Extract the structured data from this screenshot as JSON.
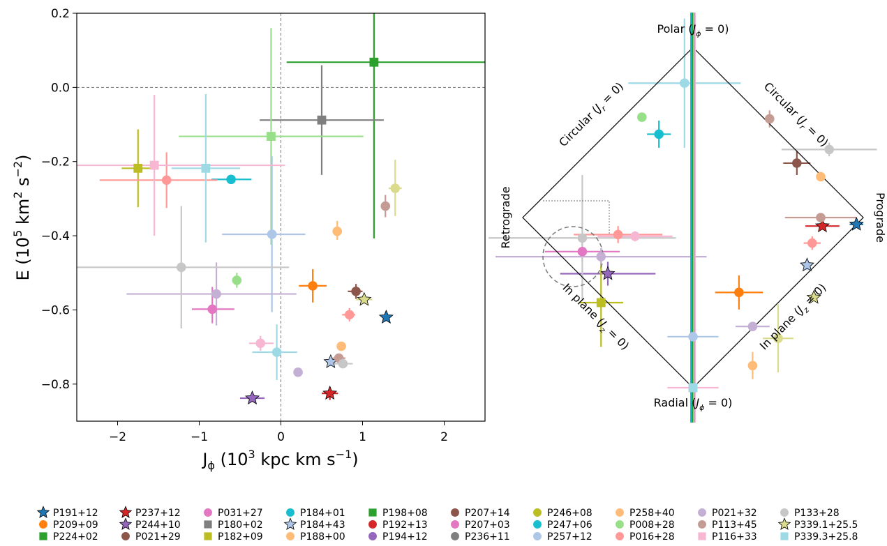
{
  "chart_data": [
    {
      "type": "scatter",
      "panel": "left",
      "xlabel": "J$_{\\phi}$ (10$^3$ kpc km s$^{-1}$)",
      "xlabel_main": "J",
      "xlabel_sub": "ϕ",
      "xlabel_rest": " (10",
      "xlabel_sup1": "3",
      "xlabel_rest2": " kpc km s",
      "xlabel_sup2": "−1",
      "xlabel_end": ")",
      "ylabel_main": "E (10",
      "ylabel_sup1": "5",
      "ylabel_rest": " km",
      "ylabel_sup2": "2",
      "ylabel_rest2": " s",
      "ylabel_sup3": "−2",
      "ylabel_end": ")",
      "xlim": [
        -2.5,
        2.5
      ],
      "ylim": [
        -0.9,
        0.2
      ],
      "xticks": [
        -2,
        -1,
        0,
        1,
        2
      ],
      "xtick_labels": [
        "−2",
        "−1",
        "0",
        "1",
        "2"
      ],
      "yticks": [
        0.2,
        0.0,
        -0.2,
        -0.4,
        -0.6,
        -0.8
      ],
      "ytick_labels": [
        "0.2",
        "0.0",
        "−0.2",
        "−0.4",
        "−0.6",
        "−0.8"
      ],
      "reference_lines": {
        "x": 0,
        "y": 0,
        "style": "dashed"
      },
      "points": [
        {
          "name": "P191+12",
          "x": 1.29,
          "y": -0.62,
          "marker": "star",
          "color": "#1f77b4"
        },
        {
          "name": "P209+09",
          "x": 0.39,
          "y": -0.535,
          "marker": "circle",
          "color": "#ff7f0e",
          "xerr": [
            0.17,
            0.17
          ],
          "yerr": [
            0.045,
            0.045
          ]
        },
        {
          "name": "P224+02",
          "x": 1.14,
          "y": 0.068,
          "marker": "square",
          "color": "#2ca02c",
          "xerr": [
            1.07,
            1.36
          ],
          "yerr": [
            0.475,
            0.505
          ]
        },
        {
          "name": "P237+12",
          "x": 0.6,
          "y": -0.825,
          "marker": "star",
          "color": "#d62728",
          "xerr": [
            0.1,
            0.1
          ],
          "yerr": [
            0.018,
            0.018
          ]
        },
        {
          "name": "P244+10",
          "x": -0.35,
          "y": -0.838,
          "marker": "star",
          "color": "#9467bd",
          "xerr": [
            0.15,
            0.15
          ]
        },
        {
          "name": "P021+29",
          "x": 0.92,
          "y": -0.55,
          "marker": "circle",
          "color": "#8c564b",
          "xerr": [
            0.1,
            0.08
          ],
          "yerr": [
            0.02,
            0.02
          ]
        },
        {
          "name": "P031+27",
          "x": -0.84,
          "y": -0.598,
          "marker": "circle",
          "color": "#e377c2",
          "xerr": [
            0.25,
            0.27
          ],
          "yerr": [
            0.038,
            0.06
          ]
        },
        {
          "name": "P180+02",
          "x": 0.5,
          "y": -0.088,
          "marker": "square",
          "color": "#7f7f7f",
          "xerr": [
            0.76,
            0.76
          ],
          "yerr": [
            0.148,
            0.148
          ]
        },
        {
          "name": "P182+09",
          "x": -1.75,
          "y": -0.218,
          "marker": "square",
          "color": "#bcbd22",
          "xerr": [
            0.2,
            0.2
          ],
          "yerr": [
            0.105,
            0.105
          ]
        },
        {
          "name": "P184+01",
          "x": -0.61,
          "y": -0.248,
          "marker": "circle",
          "color": "#17becf",
          "xerr": [
            0.24,
            0.25
          ],
          "yerr": [
            0.01,
            0.01
          ]
        },
        {
          "name": "P184+43",
          "x": 0.61,
          "y": -0.74,
          "marker": "star",
          "color": "#aec7e8",
          "xerr": [
            0.06,
            0.06
          ],
          "yerr": [
            0.012,
            0.012
          ]
        },
        {
          "name": "P188+00",
          "x": 0.69,
          "y": -0.388,
          "marker": "circle",
          "color": "#ffbb78",
          "xerr": [
            0.04,
            0.04
          ],
          "yerr": [
            0.023,
            0.028
          ]
        },
        {
          "name": "P198+08",
          "x": -0.12,
          "y": -0.132,
          "marker": "square",
          "color": "#98df8a",
          "xerr": [
            1.13,
            1.13
          ],
          "yerr": [
            0.292,
            0.292
          ]
        },
        {
          "name": "P192+13",
          "x": 0.84,
          "y": -0.613,
          "marker": "circle",
          "color": "#ff9896",
          "xerr": [
            0.09,
            0.07
          ],
          "yerr": [
            0.018,
            0.018
          ]
        },
        {
          "name": "P194+12",
          "x": 0.21,
          "y": -0.768,
          "marker": "circle",
          "color": "#c5b0d5"
        },
        {
          "name": "P207+14",
          "x": 0.71,
          "y": -0.73,
          "marker": "circle",
          "color": "#c49c94",
          "xerr": [
            0.08,
            0.08
          ]
        },
        {
          "name": "P207+03",
          "x": -0.25,
          "y": -0.69,
          "marker": "circle",
          "color": "#f7b6d2",
          "xerr": [
            0.14,
            0.16
          ],
          "yerr": [
            0.02,
            0.02
          ]
        },
        {
          "name": "P236+11",
          "x": 0.76,
          "y": -0.745,
          "marker": "circle",
          "color": "#c7c7c7",
          "xerr": [
            0.12,
            0.12
          ]
        },
        {
          "name": "P246+08",
          "x": 1.4,
          "y": -0.272,
          "marker": "circle",
          "color": "#dbdb8d",
          "xerr": [
            0.08,
            0.08
          ],
          "yerr": [
            0.075,
            0.077
          ]
        },
        {
          "name": "P247+06",
          "x": -0.05,
          "y": -0.714,
          "marker": "circle",
          "color": "#9edae5",
          "xerr": [
            0.3,
            0.25
          ],
          "yerr": [
            0.075,
            0.075
          ]
        },
        {
          "name": "P257+12",
          "x": -0.11,
          "y": -0.396,
          "marker": "circle",
          "color": "#aec7e8",
          "xerr": [
            0.61,
            0.41
          ],
          "yerr": [
            0.21,
            0.21
          ]
        },
        {
          "name": "P258+40",
          "x": 0.74,
          "y": -0.698,
          "marker": "circle",
          "color": "#ffbb78"
        },
        {
          "name": "P008+28",
          "x": -0.54,
          "y": -0.52,
          "marker": "circle",
          "color": "#98df8a",
          "xerr": [
            0.03,
            0.03
          ],
          "yerr": [
            0.02,
            0.02
          ]
        },
        {
          "name": "P016+28",
          "x": -1.4,
          "y": -0.25,
          "marker": "circle",
          "color": "#ff9896",
          "xerr": [
            0.82,
            0.62
          ],
          "yerr": [
            0.075,
            0.075
          ]
        },
        {
          "name": "P021+32",
          "x": -0.79,
          "y": -0.557,
          "marker": "circle",
          "color": "#c5b0d5",
          "xerr": [
            1.1,
            0.98
          ],
          "yerr": [
            0.085,
            0.085
          ]
        },
        {
          "name": "P113+45",
          "x": 1.28,
          "y": -0.32,
          "marker": "circle",
          "color": "#c49c94",
          "xerr": [
            0.04,
            0.04
          ],
          "yerr": [
            0.03,
            0.03
          ]
        },
        {
          "name": "P116+33",
          "x": -1.55,
          "y": -0.21,
          "marker": "square",
          "color": "#f7b6d2",
          "xerr": [
            0.95,
            1.6
          ],
          "yerr": [
            0.19,
            0.19
          ]
        },
        {
          "name": "P133+28",
          "x": -1.22,
          "y": -0.485,
          "marker": "circle",
          "color": "#c7c7c7",
          "xerr": [
            1.28,
            1.32
          ],
          "yerr": [
            0.165,
            0.165
          ]
        },
        {
          "name": "P339.1+25.5",
          "x": 1.02,
          "y": -0.572,
          "marker": "star",
          "color": "#dbdb8d",
          "xerr": [
            0.1,
            0.1
          ]
        },
        {
          "name": "P339.3+25.8",
          "x": -0.92,
          "y": -0.218,
          "marker": "square",
          "color": "#9edae5",
          "xerr": [
            0.42,
            0.42
          ],
          "yerr": [
            0.2,
            0.2
          ]
        }
      ]
    },
    {
      "type": "scatter",
      "panel": "right",
      "description_labels": {
        "top": "Polar (J$_\\phi$ = 0)",
        "bottom": "Radial (J$_\\phi$ = 0)",
        "left": "Retrograde",
        "right": "Prograde",
        "upper_left": "Circular (J$_r$ = 0)",
        "upper_right": "Circular (J$_r$ = 0)",
        "lower_left": "In plane (J$_z$ = 0)",
        "lower_right": "In plane (J$_z$ = 0)"
      },
      "top_label": {
        "pre": "Polar (",
        "J": "J",
        "sub": "ϕ",
        "post": " = 0)"
      },
      "bottom_label": {
        "pre": "Radial (",
        "J": "J",
        "sub": "ϕ",
        "post": " = 0)"
      },
      "left_label": "Retrograde",
      "right_label": "Prograde",
      "ul_label": {
        "pre": "Circular (",
        "J": "J",
        "sub": "r",
        "post": " = 0)"
      },
      "ur_label": {
        "pre": "Circular (",
        "J": "J",
        "sub": "r",
        "post": " = 0)"
      },
      "ll_label": {
        "pre": "In plane (",
        "J": "J",
        "sub": "z",
        "post": " = 0)"
      },
      "lr_label": {
        "pre": "In plane (",
        "J": "J",
        "sub": "z",
        "post": " = 0)"
      },
      "axes_shown": false,
      "points_diamond_frac": [
        {
          "name": "P191+12",
          "u": 0.96,
          "v": -0.04,
          "marker": "star",
          "color": "#1f77b4"
        },
        {
          "name": "P209+09",
          "u": 0.27,
          "v": -0.44,
          "marker": "circle",
          "color": "#ff7f0e"
        },
        {
          "name": "P224+02",
          "u": 0.0,
          "v": 0.0,
          "marker": "line",
          "color": "#2ca02c"
        },
        {
          "name": "P237+12",
          "u": 0.76,
          "v": -0.05,
          "marker": "star",
          "color": "#d62728"
        },
        {
          "name": "P244+10",
          "u": -0.5,
          "v": -0.33,
          "marker": "star",
          "color": "#9467bd"
        },
        {
          "name": "P021+29",
          "u": 0.61,
          "v": 0.32,
          "marker": "circle",
          "color": "#8c564b"
        },
        {
          "name": "P031+27",
          "u": -0.65,
          "v": -0.2,
          "marker": "circle",
          "color": "#e377c2"
        },
        {
          "name": "P180+02",
          "u": 0.0,
          "v": 0.0,
          "marker": "line",
          "color": "#7f7f7f"
        },
        {
          "name": "P182+09",
          "u": -0.54,
          "v": -0.5,
          "marker": "square",
          "color": "#bcbd22"
        },
        {
          "name": "P184+01",
          "u": -0.2,
          "v": 0.49,
          "marker": "circle",
          "color": "#17becf"
        },
        {
          "name": "P184+43",
          "u": 0.67,
          "v": -0.28,
          "marker": "star",
          "color": "#aec7e8"
        },
        {
          "name": "P188+00",
          "u": 0.75,
          "v": 0.24,
          "marker": "circle",
          "color": "#ffbb78"
        },
        {
          "name": "P198+08",
          "u": 0.0,
          "v": 0.0,
          "marker": "line",
          "color": "#98df8a"
        },
        {
          "name": "P192+13",
          "u": 0.7,
          "v": -0.15,
          "marker": "circle",
          "color": "#ff9896"
        },
        {
          "name": "P194+12",
          "u": 0.35,
          "v": -0.64,
          "marker": "circle",
          "color": "#c5b0d5"
        },
        {
          "name": "P207+14",
          "u": 0.75,
          "v": 0.0,
          "marker": "circle",
          "color": "#c49c94"
        },
        {
          "name": "P207+03",
          "u": -0.34,
          "v": -0.11,
          "marker": "circle",
          "color": "#f7b6d2"
        },
        {
          "name": "P236+11",
          "u": 0.8,
          "v": 0.4,
          "marker": "circle",
          "color": "#c7c7c7"
        },
        {
          "name": "P246+08",
          "u": 0.5,
          "v": -0.71,
          "marker": "circle",
          "color": "#dbdb8d"
        },
        {
          "name": "P247+06",
          "u": -0.05,
          "v": 0.79,
          "marker": "circle",
          "color": "#9edae5"
        },
        {
          "name": "P257+12",
          "u": 0.0,
          "v": -0.7,
          "marker": "circle",
          "color": "#aec7e8"
        },
        {
          "name": "P258+40",
          "u": 0.35,
          "v": -0.87,
          "marker": "circle",
          "color": "#ffbb78"
        },
        {
          "name": "P008+28",
          "u": -0.3,
          "v": 0.59,
          "marker": "circle",
          "color": "#98df8a"
        },
        {
          "name": "P016+28",
          "u": -0.44,
          "v": -0.1,
          "marker": "circle",
          "color": "#ff9896"
        },
        {
          "name": "P021+32",
          "u": -0.54,
          "v": -0.23,
          "marker": "circle",
          "color": "#c5b0d5"
        },
        {
          "name": "P113+45",
          "u": 0.45,
          "v": 0.58,
          "marker": "circle",
          "color": "#c49c94"
        },
        {
          "name": "P116+33",
          "u": 0.0,
          "v": -1.0,
          "marker": "square",
          "color": "#f7b6d2"
        },
        {
          "name": "P133+28",
          "u": -0.65,
          "v": -0.12,
          "marker": "circle",
          "color": "#c7c7c7"
        },
        {
          "name": "P339.1+25.5",
          "u": 0.71,
          "v": -0.47,
          "marker": "star",
          "color": "#dbdb8d"
        },
        {
          "name": "P339.3+25.8",
          "u": 0.0,
          "v": -1.0,
          "marker": "square",
          "color": "#9edae5"
        }
      ]
    }
  ],
  "legend": {
    "placement": "bottom",
    "columns": 10,
    "entries": [
      {
        "label": "P191+12",
        "marker": "star",
        "color": "#1f77b4"
      },
      {
        "label": "P209+09",
        "marker": "circle",
        "color": "#ff7f0e"
      },
      {
        "label": "P224+02",
        "marker": "square",
        "color": "#2ca02c"
      },
      {
        "label": "P237+12",
        "marker": "star",
        "color": "#d62728"
      },
      {
        "label": "P244+10",
        "marker": "star",
        "color": "#9467bd"
      },
      {
        "label": "P021+29",
        "marker": "circle",
        "color": "#8c564b"
      },
      {
        "label": "P031+27",
        "marker": "circle",
        "color": "#e377c2"
      },
      {
        "label": "P180+02",
        "marker": "square",
        "color": "#7f7f7f"
      },
      {
        "label": "P182+09",
        "marker": "square",
        "color": "#bcbd22"
      },
      {
        "label": "P184+01",
        "marker": "circle",
        "color": "#17becf"
      },
      {
        "label": "P184+43",
        "marker": "star",
        "color": "#aec7e8"
      },
      {
        "label": "P188+00",
        "marker": "circle",
        "color": "#ffbb78"
      },
      {
        "label": "P198+08",
        "marker": "square",
        "color": "#2ca02c"
      },
      {
        "label": "P192+13",
        "marker": "circle",
        "color": "#d62728"
      },
      {
        "label": "P194+12",
        "marker": "circle",
        "color": "#9467bd"
      },
      {
        "label": "P207+14",
        "marker": "circle",
        "color": "#8c564b"
      },
      {
        "label": "P207+03",
        "marker": "circle",
        "color": "#e377c2"
      },
      {
        "label": "P236+11",
        "marker": "circle",
        "color": "#7f7f7f"
      },
      {
        "label": "P246+08",
        "marker": "circle",
        "color": "#bcbd22"
      },
      {
        "label": "P247+06",
        "marker": "circle",
        "color": "#17becf"
      },
      {
        "label": "P257+12",
        "marker": "circle",
        "color": "#aec7e8"
      },
      {
        "label": "P258+40",
        "marker": "circle",
        "color": "#ffbb78"
      },
      {
        "label": "P008+28",
        "marker": "circle",
        "color": "#98df8a"
      },
      {
        "label": "P016+28",
        "marker": "circle",
        "color": "#ff9896"
      },
      {
        "label": "P021+32",
        "marker": "circle",
        "color": "#c5b0d5"
      },
      {
        "label": "P113+45",
        "marker": "circle",
        "color": "#c49c94"
      },
      {
        "label": "P116+33",
        "marker": "square",
        "color": "#f7b6d2"
      },
      {
        "label": "P133+28",
        "marker": "circle",
        "color": "#c7c7c7"
      },
      {
        "label": "P339.1+25.5",
        "marker": "star",
        "color": "#dbdb8d"
      },
      {
        "label": "P339.3+25.8",
        "marker": "square",
        "color": "#9edae5"
      }
    ]
  }
}
